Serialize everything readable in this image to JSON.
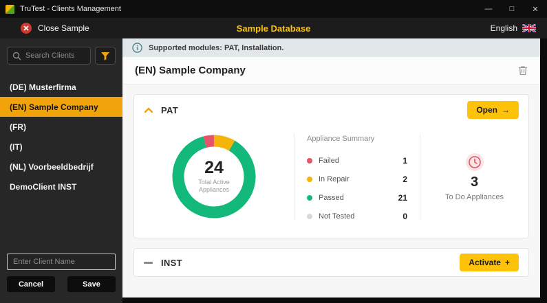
{
  "window": {
    "title": "TruTest - Clients Management",
    "controls": {
      "minimize": "—",
      "maximize": "□",
      "close": "✕"
    }
  },
  "header": {
    "close_sample": "Close Sample",
    "title": "Sample Database",
    "language": "English"
  },
  "sidebar": {
    "search_placeholder": "Search Clients",
    "clients": [
      {
        "label": "(DE) Musterfirma",
        "selected": false
      },
      {
        "label": "(EN) Sample Company",
        "selected": true
      },
      {
        "label": "(FR)",
        "selected": false
      },
      {
        "label": "(IT)",
        "selected": false
      },
      {
        "label": "(NL) Voorbeeldbedrijf",
        "selected": false
      },
      {
        "label": "DemoClient INST",
        "selected": false
      }
    ],
    "new_client_placeholder": "Enter Client Name",
    "cancel_label": "Cancel",
    "save_label": "Save"
  },
  "main": {
    "info_banner": "Supported modules: PAT, Installation.",
    "company_title": "(EN) Sample Company",
    "pat": {
      "title": "PAT",
      "open_label": "Open",
      "open_icon": "→",
      "todo_count": "3",
      "todo_label": "To Do Appliances"
    },
    "inst": {
      "title": "INST",
      "activate_label": "Activate",
      "activate_icon": "+"
    }
  },
  "chart_data": {
    "type": "pie",
    "title": "Appliance Summary",
    "categories": [
      "Failed",
      "In Repair",
      "Passed",
      "Not Tested"
    ],
    "values": [
      1,
      2,
      21,
      0
    ],
    "colors": [
      "#e4556a",
      "#f5b40a",
      "#13b87b",
      "#d8d8d8"
    ],
    "center_value": "24",
    "center_label": "Total Active Appliances",
    "legend_position": "right"
  },
  "colors": {
    "accent_yellow": "#ffc20a",
    "selected_item": "#f0a30a",
    "passed_green": "#13b87b",
    "in_repair_yellow": "#f5b40a",
    "failed_red": "#e4556a"
  }
}
